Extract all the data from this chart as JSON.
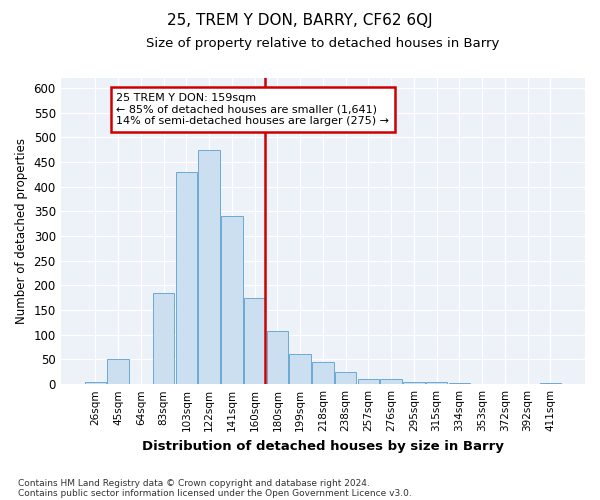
{
  "title": "25, TREM Y DON, BARRY, CF62 6QJ",
  "subtitle": "Size of property relative to detached houses in Barry",
  "xlabel": "Distribution of detached houses by size in Barry",
  "ylabel": "Number of detached properties",
  "categories": [
    "26sqm",
    "45sqm",
    "64sqm",
    "83sqm",
    "103sqm",
    "122sqm",
    "141sqm",
    "160sqm",
    "180sqm",
    "199sqm",
    "218sqm",
    "238sqm",
    "257sqm",
    "276sqm",
    "295sqm",
    "315sqm",
    "334sqm",
    "353sqm",
    "372sqm",
    "392sqm",
    "411sqm"
  ],
  "values": [
    5,
    52,
    0,
    185,
    430,
    475,
    340,
    175,
    108,
    62,
    45,
    25,
    10,
    10,
    5,
    4,
    2,
    1,
    1,
    1,
    3
  ],
  "bar_color": "#ccdff0",
  "bar_edge_color": "#6aaad4",
  "vline_index": 7,
  "annotation_title": "25 TREM Y DON: 159sqm",
  "annotation_line1": "← 85% of detached houses are smaller (1,641)",
  "annotation_line2": "14% of semi-detached houses are larger (275) →",
  "annotation_box_color": "#ffffff",
  "annotation_box_edge": "#cc0000",
  "vline_color": "#cc0000",
  "background_color": "#edf2f9",
  "footer1": "Contains HM Land Registry data © Crown copyright and database right 2024.",
  "footer2": "Contains public sector information licensed under the Open Government Licence v3.0.",
  "ylim": [
    0,
    620
  ],
  "yticks": [
    0,
    50,
    100,
    150,
    200,
    250,
    300,
    350,
    400,
    450,
    500,
    550,
    600
  ]
}
